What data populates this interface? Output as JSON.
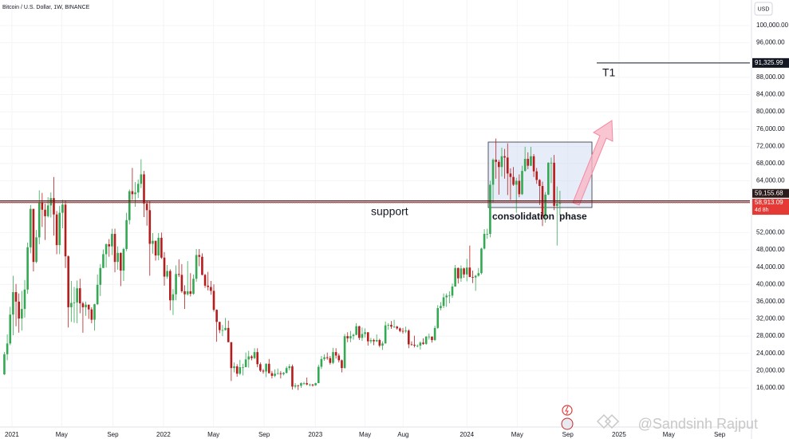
{
  "header": {
    "symbol": "Bitcoin / U.S. Dollar, 1W, BINANCE",
    "currency": "USD"
  },
  "chart_data": {
    "type": "candlestick",
    "up_color": "#34a853",
    "down_color": "#b71c1c",
    "xlim": [
      -1.5,
      256.3
    ],
    "ylim": [
      6934,
      105916
    ],
    "xticks": [
      {
        "value": 2.6,
        "label": "2021"
      },
      {
        "value": 19.7,
        "label": "May"
      },
      {
        "value": 37.3,
        "label": "Sep"
      },
      {
        "value": 54.7,
        "label": "2022"
      },
      {
        "value": 71.9,
        "label": "May"
      },
      {
        "value": 89.3,
        "label": "Sep"
      },
      {
        "value": 106.9,
        "label": "2023"
      },
      {
        "value": 124,
        "label": "May"
      },
      {
        "value": 137.1,
        "label": "Aug"
      },
      {
        "value": 159,
        "label": "2024"
      },
      {
        "value": 176.3,
        "label": "May"
      },
      {
        "value": 193.7,
        "label": "Sep"
      },
      {
        "value": 211.3,
        "label": "2025"
      },
      {
        "value": 228.4,
        "label": "May"
      },
      {
        "value": 245.9,
        "label": "Sep"
      }
    ],
    "yticks": [
      {
        "value": 16000,
        "label": "16,000.00"
      },
      {
        "value": 20000,
        "label": "20,000.00"
      },
      {
        "value": 24000,
        "label": "24,000.00"
      },
      {
        "value": 28000,
        "label": "28,000.00"
      },
      {
        "value": 32000,
        "label": "32,000.00"
      },
      {
        "value": 36000,
        "label": "36,000.00"
      },
      {
        "value": 40000,
        "label": "40,000.00"
      },
      {
        "value": 44000,
        "label": "44,000.00"
      },
      {
        "value": 48000,
        "label": "48,000.00"
      },
      {
        "value": 52000,
        "label": "52,000.00"
      },
      {
        "value": 64000,
        "label": "64,000.00"
      },
      {
        "value": 68000,
        "label": "68,000.00"
      },
      {
        "value": 72000,
        "label": "72,000.00"
      },
      {
        "value": 76000,
        "label": "76,000.00"
      },
      {
        "value": 80000,
        "label": "80,000.00"
      },
      {
        "value": 84000,
        "label": "84,000.00"
      },
      {
        "value": 88000,
        "label": "88,000.00"
      },
      {
        "value": 96000,
        "label": "96,000.00"
      },
      {
        "value": 100000,
        "label": "100,000.00"
      }
    ],
    "target_line": {
      "value": 91325.99,
      "label": "91,325.99",
      "name": "T1"
    },
    "support_line": {
      "value": 59155.68,
      "label": "59,155.68",
      "name": "support"
    },
    "current_price": {
      "value": 58913.09,
      "label": "58,913.09",
      "countdown": "4d 8h"
    },
    "annotation": [
      "consolidation",
      "phase"
    ],
    "ohlc": [
      [
        19150,
        24300,
        19000,
        23800
      ],
      [
        23800,
        28400,
        22400,
        26300
      ],
      [
        26300,
        34800,
        25900,
        33000
      ],
      [
        33000,
        42000,
        28200,
        38200
      ],
      [
        38200,
        40100,
        30300,
        36000
      ],
      [
        36000,
        37900,
        28800,
        32100
      ],
      [
        32100,
        38500,
        29300,
        34300
      ],
      [
        34300,
        41000,
        32300,
        38800
      ],
      [
        38800,
        49700,
        37800,
        48600
      ],
      [
        48600,
        58400,
        47200,
        57500
      ],
      [
        57500,
        57500,
        43000,
        45200
      ],
      [
        45200,
        52600,
        44900,
        50900
      ],
      [
        50900,
        61800,
        49300,
        59000
      ],
      [
        59000,
        61200,
        53300,
        57300
      ],
      [
        57300,
        58700,
        50300,
        55800
      ],
      [
        55800,
        60200,
        55500,
        58300
      ],
      [
        58300,
        61300,
        55500,
        60000
      ],
      [
        60000,
        64900,
        51300,
        56200
      ],
      [
        56200,
        57000,
        47000,
        49100
      ],
      [
        49100,
        58200,
        47000,
        56600
      ],
      [
        56600,
        59600,
        53000,
        58500
      ],
      [
        58500,
        59500,
        43800,
        46500
      ],
      [
        46500,
        46700,
        30000,
        34700
      ],
      [
        34700,
        40800,
        31300,
        35700
      ],
      [
        35700,
        39400,
        31100,
        35800
      ],
      [
        35800,
        40900,
        31000,
        39100
      ],
      [
        39100,
        41300,
        33300,
        35600
      ],
      [
        35600,
        36000,
        28800,
        34700
      ],
      [
        34700,
        36000,
        32700,
        35300
      ],
      [
        35300,
        35300,
        32000,
        34200
      ],
      [
        34200,
        34700,
        31000,
        31800
      ],
      [
        31800,
        35500,
        29300,
        35400
      ],
      [
        35400,
        42300,
        35200,
        39900
      ],
      [
        39900,
        44700,
        37300,
        43800
      ],
      [
        43800,
        48100,
        43800,
        47000
      ],
      [
        47000,
        49500,
        43900,
        49300
      ],
      [
        49300,
        50500,
        46400,
        48800
      ],
      [
        48800,
        52900,
        46800,
        51700
      ],
      [
        51700,
        52900,
        42800,
        45200
      ],
      [
        45200,
        48800,
        43400,
        47300
      ],
      [
        47300,
        47400,
        39600,
        43200
      ],
      [
        43200,
        48500,
        40800,
        48200
      ],
      [
        48200,
        56600,
        47700,
        54900
      ],
      [
        54900,
        62000,
        53900,
        61600
      ],
      [
        61600,
        67000,
        59600,
        60900
      ],
      [
        60900,
        63700,
        58000,
        61300
      ],
      [
        61300,
        64300,
        60000,
        63300
      ],
      [
        63300,
        69000,
        62300,
        65500
      ],
      [
        65500,
        66300,
        55600,
        58700
      ],
      [
        58700,
        59300,
        53600,
        57200
      ],
      [
        57200,
        59200,
        42000,
        49400
      ],
      [
        49400,
        51900,
        47100,
        50100
      ],
      [
        50100,
        50100,
        45500,
        46700
      ],
      [
        46700,
        51900,
        45600,
        50800
      ],
      [
        50800,
        52000,
        45900,
        46200
      ],
      [
        46200,
        47500,
        39700,
        41800
      ],
      [
        41800,
        44500,
        41300,
        43100
      ],
      [
        43100,
        43500,
        34000,
        36300
      ],
      [
        36300,
        38900,
        32900,
        37700
      ],
      [
        37700,
        44400,
        36300,
        42400
      ],
      [
        42400,
        45800,
        41700,
        42200
      ],
      [
        42200,
        44700,
        38000,
        38400
      ],
      [
        38400,
        39800,
        34300,
        37700
      ],
      [
        37700,
        45400,
        37400,
        38400
      ],
      [
        38400,
        42600,
        37200,
        37800
      ],
      [
        37800,
        42300,
        37600,
        41300
      ],
      [
        41300,
        48200,
        40600,
        46800
      ],
      [
        46800,
        48200,
        44200,
        46400
      ],
      [
        46400,
        47200,
        42100,
        42200
      ],
      [
        42200,
        42400,
        39200,
        39700
      ],
      [
        39700,
        42900,
        38600,
        39400
      ],
      [
        39400,
        40800,
        37600,
        38500
      ],
      [
        38500,
        40000,
        33700,
        34100
      ],
      [
        34100,
        34200,
        26700,
        31300
      ],
      [
        31300,
        31300,
        28700,
        29400
      ],
      [
        29400,
        30600,
        28000,
        29400
      ],
      [
        29400,
        32200,
        29300,
        29900
      ],
      [
        29900,
        31600,
        26600,
        26600
      ],
      [
        26600,
        26600,
        17600,
        20600
      ],
      [
        20600,
        21900,
        19600,
        21000
      ],
      [
        21000,
        21500,
        18600,
        19300
      ],
      [
        19300,
        22500,
        19000,
        20800
      ],
      [
        20800,
        21600,
        18900,
        20800
      ],
      [
        20800,
        24200,
        20800,
        22600
      ],
      [
        22600,
        24600,
        20700,
        23300
      ],
      [
        23300,
        23600,
        22400,
        22900
      ],
      [
        22900,
        25200,
        22700,
        24300
      ],
      [
        24300,
        25200,
        20800,
        21500
      ],
      [
        21500,
        21900,
        19700,
        20000
      ],
      [
        20000,
        20400,
        19300,
        19800
      ],
      [
        19800,
        21700,
        18500,
        21600
      ],
      [
        21600,
        22700,
        19400,
        19400
      ],
      [
        19400,
        19900,
        18200,
        18800
      ],
      [
        18800,
        20300,
        18500,
        19300
      ],
      [
        19300,
        20500,
        19100,
        19400
      ],
      [
        19400,
        19900,
        18200,
        19200
      ],
      [
        19200,
        19700,
        18900,
        19500
      ],
      [
        19500,
        21000,
        19300,
        20600
      ],
      [
        20600,
        21500,
        20100,
        21000
      ],
      [
        21000,
        21400,
        15600,
        16300
      ],
      [
        16300,
        17100,
        15900,
        16600
      ],
      [
        16600,
        16700,
        15500,
        16500
      ],
      [
        16500,
        17300,
        16000,
        17100
      ],
      [
        17100,
        17400,
        16700,
        17100
      ],
      [
        17100,
        18400,
        16600,
        16800
      ],
      [
        16800,
        17000,
        16400,
        16800
      ],
      [
        16800,
        16900,
        16300,
        16600
      ],
      [
        16600,
        17200,
        16500,
        17100
      ],
      [
        17100,
        21400,
        17100,
        20900
      ],
      [
        20900,
        23400,
        20400,
        22700
      ],
      [
        22700,
        23800,
        22300,
        23100
      ],
      [
        23100,
        24200,
        22500,
        22900
      ],
      [
        22900,
        23400,
        21400,
        21800
      ],
      [
        21800,
        25300,
        21500,
        24300
      ],
      [
        24300,
        25200,
        22800,
        23500
      ],
      [
        23500,
        24000,
        21900,
        22400
      ],
      [
        22400,
        22600,
        19600,
        20600
      ],
      [
        20600,
        28500,
        20500,
        28000
      ],
      [
        28000,
        28900,
        26600,
        27500
      ],
      [
        27500,
        29200,
        26600,
        28000
      ],
      [
        28000,
        28600,
        27200,
        28300
      ],
      [
        28300,
        31000,
        28200,
        30300
      ],
      [
        30300,
        30400,
        27100,
        27600
      ],
      [
        27600,
        30000,
        26900,
        28500
      ],
      [
        28500,
        29800,
        27700,
        28900
      ],
      [
        28900,
        28900,
        25800,
        26800
      ],
      [
        26800,
        27600,
        26300,
        27100
      ],
      [
        27100,
        27400,
        25900,
        26800
      ],
      [
        26800,
        28400,
        26600,
        27100
      ],
      [
        27100,
        27400,
        25400,
        25800
      ],
      [
        25800,
        26800,
        24800,
        26300
      ],
      [
        26300,
        31400,
        26300,
        30500
      ],
      [
        30500,
        31000,
        29500,
        30600
      ],
      [
        30600,
        31500,
        29700,
        30200
      ],
      [
        30200,
        31800,
        29900,
        30200
      ],
      [
        30200,
        30400,
        29500,
        29800
      ],
      [
        29800,
        30000,
        28900,
        29200
      ],
      [
        29200,
        29900,
        28600,
        29100
      ],
      [
        29100,
        30200,
        28700,
        29300
      ],
      [
        29300,
        29600,
        25200,
        26100
      ],
      [
        26100,
        26800,
        25800,
        26000
      ],
      [
        26000,
        28100,
        25400,
        25800
      ],
      [
        25800,
        26100,
        25400,
        25800
      ],
      [
        25800,
        26800,
        24900,
        26500
      ],
      [
        26500,
        27500,
        26000,
        26200
      ],
      [
        26200,
        28000,
        26000,
        27900
      ],
      [
        27900,
        28600,
        27200,
        27900
      ],
      [
        27900,
        27900,
        26500,
        27100
      ],
      [
        27100,
        30400,
        26900,
        29900
      ],
      [
        29900,
        35200,
        29700,
        34500
      ],
      [
        34500,
        35900,
        34000,
        35000
      ],
      [
        35000,
        37900,
        34500,
        37000
      ],
      [
        37000,
        37900,
        34800,
        37400
      ],
      [
        37400,
        38400,
        35600,
        37400
      ],
      [
        37400,
        40200,
        36900,
        39500
      ],
      [
        39500,
        44500,
        39500,
        43800
      ],
      [
        43800,
        43900,
        40200,
        41400
      ],
      [
        41400,
        44400,
        40600,
        43700
      ],
      [
        43700,
        43900,
        41500,
        42300
      ],
      [
        42300,
        45900,
        40700,
        43900
      ],
      [
        43900,
        49000,
        41700,
        41700
      ],
      [
        41700,
        43200,
        40300,
        41600
      ],
      [
        41600,
        42200,
        38500,
        42000
      ],
      [
        42000,
        43800,
        41800,
        42600
      ],
      [
        42600,
        48500,
        42300,
        48300
      ],
      [
        48300,
        52800,
        48100,
        51700
      ],
      [
        51700,
        52900,
        50600,
        51700
      ],
      [
        51700,
        64000,
        50900,
        63100
      ],
      [
        63100,
        69200,
        59000,
        68900
      ],
      [
        68900,
        73800,
        64500,
        68400
      ],
      [
        68400,
        68900,
        60800,
        67200
      ],
      [
        67200,
        71700,
        65000,
        69700
      ],
      [
        69700,
        71400,
        64500,
        69400
      ],
      [
        69400,
        72700,
        60700,
        65700
      ],
      [
        65700,
        66900,
        59600,
        64900
      ],
      [
        64900,
        67200,
        62800,
        63100
      ],
      [
        63100,
        64700,
        56600,
        64000
      ],
      [
        64000,
        65500,
        60200,
        60900
      ],
      [
        60900,
        67500,
        60700,
        66300
      ],
      [
        66300,
        71900,
        66100,
        69100
      ],
      [
        69100,
        70600,
        66700,
        67500
      ],
      [
        67500,
        71900,
        67400,
        69700
      ],
      [
        69700,
        70200,
        64900,
        66200
      ],
      [
        66200,
        67000,
        63300,
        64200
      ],
      [
        64200,
        64400,
        58400,
        62800
      ],
      [
        62800,
        63800,
        53500,
        55800
      ],
      [
        55800,
        61400,
        54300,
        60800
      ],
      [
        60800,
        68300,
        60700,
        68200
      ],
      [
        68200,
        69400,
        63500,
        68200
      ],
      [
        68200,
        70000,
        57200,
        58200
      ],
      [
        58200,
        62700,
        49000,
        58700
      ],
      [
        58700,
        61700,
        56100,
        58900
      ]
    ]
  },
  "watermark": "@Sandsinh Rajput"
}
